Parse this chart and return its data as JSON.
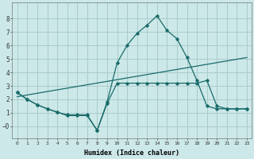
{
  "xlabel": "Humidex (Indice chaleur)",
  "background_color": "#cce8e8",
  "grid_color": "#aacccc",
  "line_color": "#1a6b6b",
  "xlim": [
    -0.5,
    23.5
  ],
  "ylim": [
    -0.9,
    9.2
  ],
  "xticks": [
    0,
    1,
    2,
    3,
    4,
    5,
    6,
    7,
    8,
    9,
    10,
    11,
    12,
    13,
    14,
    15,
    16,
    17,
    18,
    19,
    20,
    21,
    22,
    23
  ],
  "yticks": [
    0,
    1,
    2,
    3,
    4,
    5,
    6,
    7,
    8
  ],
  "ytick_labels": [
    "−0",
    "1",
    "2",
    "3",
    "4",
    "5",
    "6",
    "7",
    "8"
  ],
  "line1_x": [
    0,
    1,
    2,
    3,
    4,
    5,
    6,
    7,
    8,
    9,
    10,
    11,
    12,
    13,
    14,
    15,
    16,
    17,
    18,
    19,
    20,
    21,
    22,
    23
  ],
  "line1_y": [
    2.5,
    2.0,
    1.6,
    1.3,
    1.05,
    0.8,
    0.8,
    0.8,
    -0.3,
    1.7,
    3.2,
    3.2,
    3.2,
    3.2,
    3.2,
    3.2,
    3.2,
    3.2,
    3.2,
    3.4,
    1.5,
    1.3,
    1.3,
    1.3
  ],
  "line2_x": [
    0,
    1,
    2,
    3,
    4,
    5,
    6,
    7,
    8,
    9,
    10,
    11,
    12,
    13,
    14,
    15,
    16,
    17,
    18,
    19,
    20,
    21,
    22,
    23
  ],
  "line2_y": [
    2.5,
    2.0,
    1.6,
    1.3,
    1.05,
    0.85,
    0.85,
    0.85,
    -0.3,
    1.8,
    4.7,
    6.0,
    6.9,
    7.5,
    8.2,
    7.1,
    6.5,
    5.1,
    3.4,
    1.5,
    1.3,
    1.3,
    1.3,
    1.3
  ],
  "line3_x": [
    0,
    23
  ],
  "line3_y": [
    2.2,
    5.1
  ]
}
